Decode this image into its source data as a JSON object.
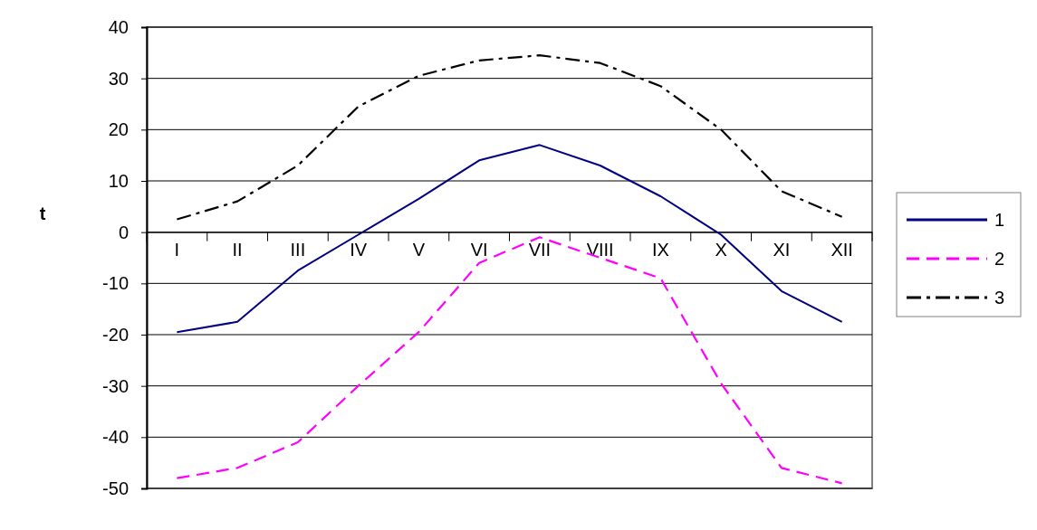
{
  "chart_data": {
    "type": "line",
    "ylabel": "t",
    "categories": [
      "I",
      "II",
      "III",
      "IV",
      "V",
      "VI",
      "VII",
      "VIII",
      "IX",
      "X",
      "XI",
      "XII"
    ],
    "ylim": [
      -50,
      40
    ],
    "yticks": [
      -50,
      -40,
      -30,
      -20,
      -10,
      0,
      10,
      20,
      30,
      40
    ],
    "grid": "y",
    "legend": "right",
    "marker": "none",
    "series": [
      {
        "name": "1",
        "color": "#000080",
        "line_style": "solid",
        "values": [
          -19.5,
          -17.5,
          -7.5,
          -0.5,
          6.5,
          14,
          17,
          13,
          7,
          -0.5,
          -11.5,
          -17.5
        ]
      },
      {
        "name": "2",
        "color": "#ff00ff",
        "line_style": "dashed",
        "values": [
          -48,
          -46,
          -41,
          -30,
          -19.5,
          -6,
          -1,
          -5,
          -9,
          -29.5,
          -46,
          -49
        ]
      },
      {
        "name": "3",
        "color": "#000000",
        "line_style": "dashdot",
        "values": [
          2.5,
          6,
          13,
          24.5,
          30.5,
          33.5,
          34.5,
          33,
          28.5,
          20,
          8,
          3
        ]
      }
    ]
  }
}
